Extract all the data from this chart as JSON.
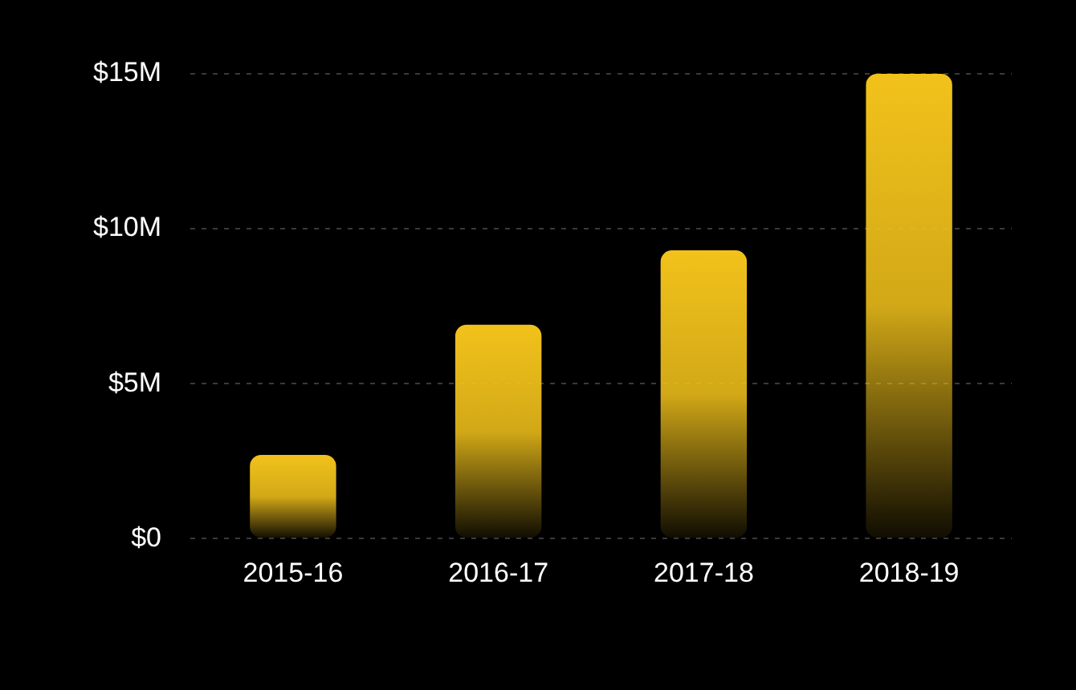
{
  "chart_data": {
    "type": "bar",
    "categories": [
      "2015-16",
      "2016-17",
      "2017-18",
      "2018-19"
    ],
    "values": [
      2.7,
      6.9,
      9.3,
      15
    ],
    "color": "#f2c21b",
    "ylim": [
      0,
      15
    ],
    "yticks": [
      {
        "value": 0,
        "label": "$0"
      },
      {
        "value": 5,
        "label": "$5M"
      },
      {
        "value": 10,
        "label": "$10M"
      },
      {
        "value": 15,
        "label": "$15M"
      }
    ],
    "grid": "y"
  }
}
